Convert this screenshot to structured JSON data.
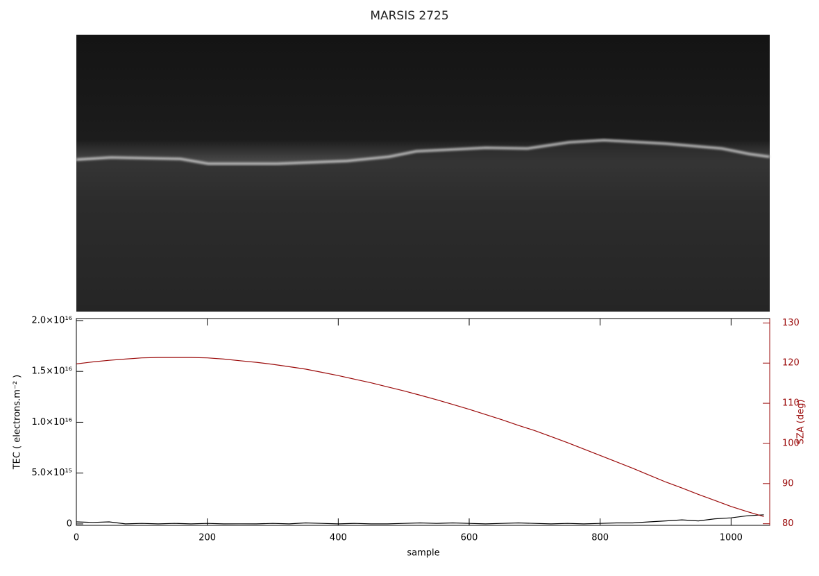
{
  "chart_data": {
    "type": "line",
    "title": "MARSIS 2725",
    "x_label": "sample",
    "y_label": "TEC ( electrons.m⁻² )",
    "y2_label": "SZA (deg)",
    "x": [
      0,
      25,
      50,
      75,
      100,
      125,
      150,
      175,
      200,
      225,
      250,
      275,
      300,
      325,
      350,
      375,
      400,
      425,
      450,
      475,
      500,
      525,
      550,
      575,
      600,
      625,
      650,
      675,
      700,
      725,
      750,
      775,
      800,
      825,
      850,
      875,
      900,
      925,
      950,
      975,
      1000,
      1025,
      1050
    ],
    "series": [
      {
        "color": "#000000",
        "values": [
          200000000000000.0,
          150000000000000.0,
          200000000000000.0,
          0,
          50000000000000.0,
          0,
          50000000000000.0,
          0,
          50000000000000.0,
          0,
          10000000000000.0,
          0,
          50000000000000.0,
          0,
          100000000000000.0,
          50000000000000.0,
          0,
          50000000000000.0,
          0,
          0,
          50000000000000.0,
          100000000000000.0,
          50000000000000.0,
          100000000000000.0,
          50000000000000.0,
          0,
          50000000000000.0,
          100000000000000.0,
          50000000000000.0,
          0,
          50000000000000.0,
          0,
          50000000000000.0,
          100000000000000.0,
          100000000000000.0,
          200000000000000.0,
          300000000000000.0,
          400000000000000.0,
          300000000000000.0,
          500000000000000.0,
          600000000000000.0,
          800000000000000.0,
          900000000000000.0
        ]
      },
      {
        "color": "#9b0a0a",
        "axis": "y2",
        "values": [
          119.8,
          120.3,
          120.7,
          121.0,
          121.3,
          121.4,
          121.4,
          121.4,
          121.3,
          121.0,
          120.6,
          120.2,
          119.7,
          119.1,
          118.5,
          117.7,
          116.9,
          116.0,
          115.1,
          114.1,
          113.1,
          112.0,
          110.9,
          109.7,
          108.5,
          107.2,
          105.9,
          104.5,
          103.2,
          101.7,
          100.2,
          98.6,
          97.0,
          95.4,
          93.8,
          92.1,
          90.4,
          88.9,
          87.3,
          85.8,
          84.3,
          83.0,
          81.8
        ]
      }
    ],
    "xlim": [
      0,
      1059
    ],
    "xticks": [
      0,
      200,
      400,
      600,
      800,
      1000
    ],
    "ylim": [
      -140000000000000.0,
      2.02e+16
    ],
    "yticks": [
      0,
      {
        "value": 5000000000000000.0,
        "label": "5.0×10¹⁵"
      },
      {
        "value": 1e+16,
        "label": "1.0×10¹⁶"
      },
      {
        "value": 1.5e+16,
        "label": "1.5×10¹⁶"
      },
      {
        "value": 2e+16,
        "label": "2.0×10¹⁶"
      }
    ],
    "y2lim": [
      79.6,
      131.1
    ],
    "y2ticks": [
      80,
      90,
      100,
      110,
      120,
      130
    ],
    "y2_color": "#9b0a0a"
  }
}
